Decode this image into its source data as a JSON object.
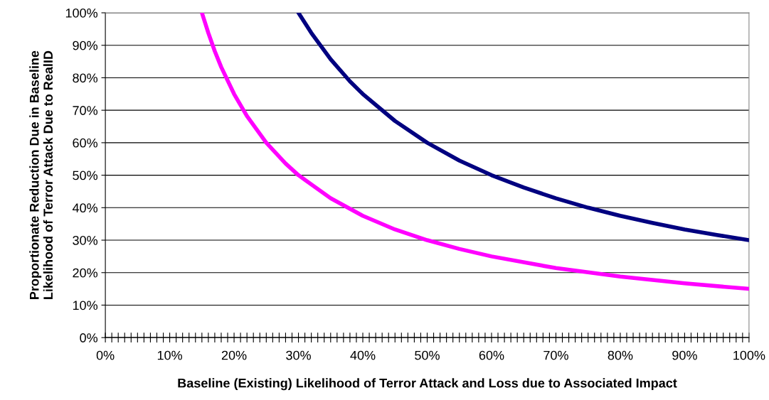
{
  "chart_data": {
    "type": "line",
    "xlabel": "Baseline (Existing) Likelihood of Terror Attack and Loss due to Associated Impact",
    "ylabel": "Proportionate Reduction Due in Baseline\nLikelihood of Terror Attack Due to RealID",
    "series": [
      {
        "color": "#000080",
        "x": [
          30,
          32,
          35,
          38,
          40,
          45,
          50,
          55,
          60,
          65,
          70,
          75,
          80,
          85,
          90,
          95,
          100
        ],
        "values": [
          100,
          93.8,
          85.7,
          78.9,
          75,
          66.7,
          60,
          54.5,
          50,
          46.2,
          42.9,
          40,
          37.5,
          35.3,
          33.3,
          31.6,
          30
        ]
      },
      {
        "color": "#ff00ff",
        "x": [
          15,
          16,
          17,
          18,
          20,
          22,
          25,
          28,
          30,
          35,
          40,
          45,
          50,
          55,
          60,
          70,
          80,
          90,
          100
        ],
        "values": [
          100,
          93.8,
          88.2,
          83.3,
          75,
          68.2,
          60,
          53.6,
          50,
          42.9,
          37.5,
          33.3,
          30,
          27.3,
          25,
          21.4,
          18.8,
          16.7,
          15
        ]
      }
    ],
    "xlim": [
      0,
      100
    ],
    "ylim": [
      0,
      100
    ],
    "xticks": [
      {
        "value": 0,
        "label": "0%"
      },
      {
        "value": 10,
        "label": "10%"
      },
      {
        "value": 20,
        "label": "20%"
      },
      {
        "value": 30,
        "label": "30%"
      },
      {
        "value": 40,
        "label": "40%"
      },
      {
        "value": 50,
        "label": "50%"
      },
      {
        "value": 60,
        "label": "60%"
      },
      {
        "value": 70,
        "label": "70%"
      },
      {
        "value": 80,
        "label": "80%"
      },
      {
        "value": 90,
        "label": "90%"
      },
      {
        "value": 100,
        "label": "100%"
      },
      {
        "value": 1,
        "label": null
      },
      {
        "value": 2,
        "label": null
      },
      {
        "value": 3,
        "label": null
      },
      {
        "value": 4,
        "label": null
      },
      {
        "value": 5,
        "label": null
      },
      {
        "value": 6,
        "label": null
      },
      {
        "value": 7,
        "label": null
      },
      {
        "value": 8,
        "label": null
      },
      {
        "value": 9,
        "label": null
      },
      {
        "value": 11,
        "label": null
      },
      {
        "value": 12,
        "label": null
      },
      {
        "value": 13,
        "label": null
      },
      {
        "value": 14,
        "label": null
      },
      {
        "value": 15,
        "label": null
      },
      {
        "value": 16,
        "label": null
      },
      {
        "value": 17,
        "label": null
      },
      {
        "value": 18,
        "label": null
      },
      {
        "value": 19,
        "label": null
      },
      {
        "value": 21,
        "label": null
      },
      {
        "value": 22,
        "label": null
      },
      {
        "value": 23,
        "label": null
      },
      {
        "value": 24,
        "label": null
      },
      {
        "value": 25,
        "label": null
      },
      {
        "value": 26,
        "label": null
      },
      {
        "value": 27,
        "label": null
      },
      {
        "value": 28,
        "label": null
      },
      {
        "value": 29,
        "label": null
      },
      {
        "value": 31,
        "label": null
      },
      {
        "value": 32,
        "label": null
      },
      {
        "value": 33,
        "label": null
      },
      {
        "value": 34,
        "label": null
      },
      {
        "value": 35,
        "label": null
      },
      {
        "value": 36,
        "label": null
      },
      {
        "value": 37,
        "label": null
      },
      {
        "value": 38,
        "label": null
      },
      {
        "value": 39,
        "label": null
      },
      {
        "value": 41,
        "label": null
      },
      {
        "value": 42,
        "label": null
      },
      {
        "value": 43,
        "label": null
      },
      {
        "value": 44,
        "label": null
      },
      {
        "value": 45,
        "label": null
      },
      {
        "value": 46,
        "label": null
      },
      {
        "value": 47,
        "label": null
      },
      {
        "value": 48,
        "label": null
      },
      {
        "value": 49,
        "label": null
      },
      {
        "value": 51,
        "label": null
      },
      {
        "value": 52,
        "label": null
      },
      {
        "value": 53,
        "label": null
      },
      {
        "value": 54,
        "label": null
      },
      {
        "value": 55,
        "label": null
      },
      {
        "value": 56,
        "label": null
      },
      {
        "value": 57,
        "label": null
      },
      {
        "value": 58,
        "label": null
      },
      {
        "value": 59,
        "label": null
      },
      {
        "value": 61,
        "label": null
      },
      {
        "value": 62,
        "label": null
      },
      {
        "value": 63,
        "label": null
      },
      {
        "value": 64,
        "label": null
      },
      {
        "value": 65,
        "label": null
      },
      {
        "value": 66,
        "label": null
      },
      {
        "value": 67,
        "label": null
      },
      {
        "value": 68,
        "label": null
      },
      {
        "value": 69,
        "label": null
      },
      {
        "value": 71,
        "label": null
      },
      {
        "value": 72,
        "label": null
      },
      {
        "value": 73,
        "label": null
      },
      {
        "value": 74,
        "label": null
      },
      {
        "value": 75,
        "label": null
      },
      {
        "value": 76,
        "label": null
      },
      {
        "value": 77,
        "label": null
      },
      {
        "value": 78,
        "label": null
      },
      {
        "value": 79,
        "label": null
      },
      {
        "value": 81,
        "label": null
      },
      {
        "value": 82,
        "label": null
      },
      {
        "value": 83,
        "label": null
      },
      {
        "value": 84,
        "label": null
      },
      {
        "value": 85,
        "label": null
      },
      {
        "value": 86,
        "label": null
      },
      {
        "value": 87,
        "label": null
      },
      {
        "value": 88,
        "label": null
      },
      {
        "value": 89,
        "label": null
      },
      {
        "value": 91,
        "label": null
      },
      {
        "value": 92,
        "label": null
      },
      {
        "value": 93,
        "label": null
      },
      {
        "value": 94,
        "label": null
      },
      {
        "value": 95,
        "label": null
      },
      {
        "value": 96,
        "label": null
      },
      {
        "value": 97,
        "label": null
      },
      {
        "value": 98,
        "label": null
      },
      {
        "value": 99,
        "label": null
      }
    ],
    "yticks": [
      {
        "value": 0,
        "label": "0%"
      },
      {
        "value": 10,
        "label": "10%"
      },
      {
        "value": 20,
        "label": "20%"
      },
      {
        "value": 30,
        "label": "30%"
      },
      {
        "value": 40,
        "label": "40%"
      },
      {
        "value": 50,
        "label": "50%"
      },
      {
        "value": 60,
        "label": "60%"
      },
      {
        "value": 70,
        "label": "70%"
      },
      {
        "value": 80,
        "label": "80%"
      },
      {
        "value": 90,
        "label": "90%"
      },
      {
        "value": 100,
        "label": "100%"
      }
    ],
    "grid": "y",
    "marker": "none",
    "line_style": "solid"
  }
}
